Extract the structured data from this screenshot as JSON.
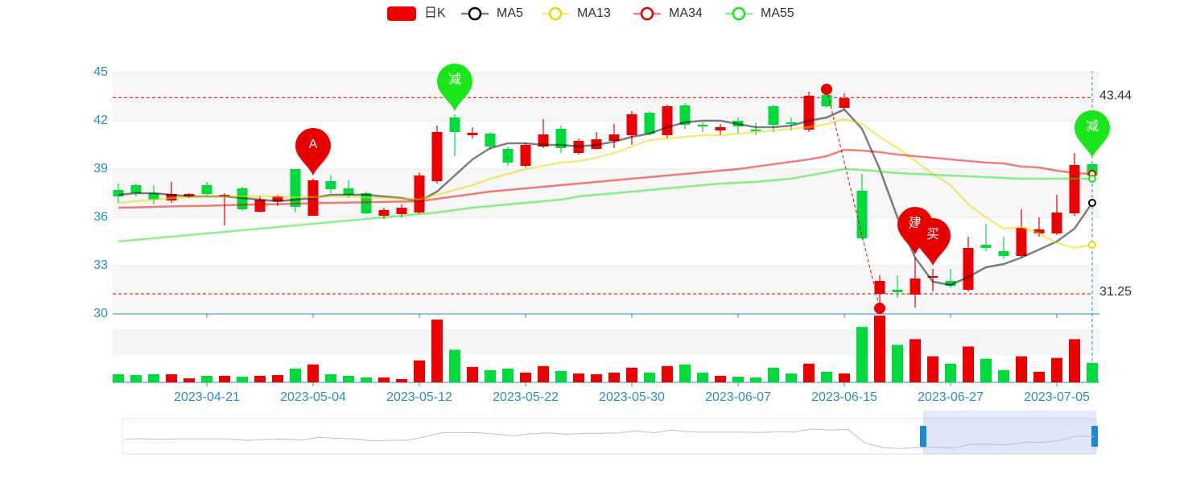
{
  "chart_data": {
    "type": "candlestick",
    "ylim": [
      30,
      45
    ],
    "yticks": [
      30,
      33,
      36,
      39,
      42,
      45
    ],
    "grid": true,
    "categories": [
      null,
      null,
      null,
      null,
      null,
      "2023-04-21",
      null,
      null,
      null,
      null,
      null,
      "2023-05-04",
      null,
      null,
      null,
      null,
      null,
      "2023-05-12",
      null,
      null,
      null,
      null,
      null,
      "2023-05-22",
      null,
      null,
      null,
      null,
      null,
      "2023-05-30",
      null,
      null,
      null,
      null,
      null,
      "2023-06-07",
      null,
      null,
      null,
      null,
      null,
      "2023-06-15",
      null,
      null,
      null,
      null,
      null,
      "2023-06-27",
      null,
      null,
      null,
      null,
      null,
      "2023-07-05",
      null,
      null
    ],
    "series": [
      {
        "name": "日K",
        "type": "candlestick",
        "color": "#ec0000",
        "down_color": "#00da3c",
        "values": [
          [
            37.7,
            37.3,
            36.9,
            38.1
          ],
          [
            38.0,
            37.5,
            37.3,
            38.1
          ],
          [
            37.5,
            37.1,
            36.8,
            38.0
          ],
          [
            37.05,
            37.45,
            36.9,
            38.2
          ],
          [
            37.3,
            37.45,
            37.2,
            37.5
          ],
          [
            38.0,
            37.45,
            37.3,
            38.2
          ],
          [
            37.3,
            37.4,
            35.5,
            37.5
          ],
          [
            37.8,
            36.5,
            36.4,
            37.9
          ],
          [
            36.35,
            37.1,
            36.3,
            37.3
          ],
          [
            37.0,
            37.3,
            36.7,
            37.4
          ],
          [
            39.0,
            36.65,
            36.3,
            39.0
          ],
          [
            36.1,
            38.3,
            36.1,
            38.4
          ],
          [
            38.25,
            37.75,
            37.5,
            38.6
          ],
          [
            37.8,
            37.4,
            37.2,
            38.3
          ],
          [
            37.5,
            36.25,
            36.2,
            37.6
          ],
          [
            36.1,
            36.45,
            35.9,
            36.6
          ],
          [
            36.2,
            36.6,
            36.0,
            36.8
          ],
          [
            36.3,
            38.6,
            36.2,
            38.8
          ],
          [
            38.25,
            41.3,
            38.1,
            41.7
          ],
          [
            42.2,
            41.3,
            39.8,
            42.4
          ],
          [
            41.1,
            41.25,
            40.9,
            41.6
          ],
          [
            41.2,
            40.4,
            40.2,
            41.3
          ],
          [
            40.25,
            39.4,
            39.2,
            40.4
          ],
          [
            39.2,
            40.5,
            39.1,
            40.6
          ],
          [
            40.4,
            41.15,
            40.3,
            42.1
          ],
          [
            41.5,
            40.3,
            40.0,
            41.7
          ],
          [
            40.0,
            40.75,
            39.9,
            40.9
          ],
          [
            40.25,
            40.85,
            40.2,
            41.3
          ],
          [
            40.75,
            41.15,
            40.3,
            41.8
          ],
          [
            41.1,
            42.4,
            40.5,
            42.6
          ],
          [
            42.5,
            41.2,
            41.1,
            42.6
          ],
          [
            41.1,
            42.9,
            40.9,
            43.0
          ],
          [
            42.95,
            41.75,
            41.5,
            43.1
          ],
          [
            41.75,
            41.65,
            41.3,
            41.9
          ],
          [
            41.4,
            41.6,
            41.1,
            41.8
          ],
          [
            42.0,
            41.65,
            41.2,
            42.2
          ],
          [
            41.45,
            41.35,
            41.1,
            41.9
          ],
          [
            42.9,
            41.75,
            41.3,
            43.0
          ],
          [
            41.9,
            41.8,
            41.4,
            42.2
          ],
          [
            41.45,
            43.55,
            41.3,
            43.8
          ],
          [
            43.6,
            42.9,
            42.8,
            43.95
          ],
          [
            42.8,
            43.4,
            42.7,
            43.7
          ],
          [
            37.65,
            34.7,
            34.6,
            38.7
          ],
          [
            31.25,
            32.05,
            30.35,
            32.4
          ],
          [
            31.5,
            31.35,
            31.0,
            32.4
          ],
          [
            31.2,
            32.2,
            30.4,
            33.5
          ],
          [
            32.25,
            32.35,
            31.4,
            32.8
          ],
          [
            32.05,
            31.75,
            31.6,
            32.8
          ],
          [
            31.5,
            34.1,
            31.4,
            34.8
          ],
          [
            34.3,
            34.1,
            33.9,
            35.6
          ],
          [
            33.9,
            33.6,
            33.4,
            34.8
          ],
          [
            33.6,
            35.35,
            33.5,
            36.5
          ],
          [
            35.0,
            35.25,
            34.8,
            36.0
          ],
          [
            35.0,
            36.3,
            34.9,
            37.4
          ],
          [
            36.25,
            39.25,
            36.1,
            40.0
          ],
          [
            39.3,
            38.6,
            38.5,
            39.5
          ]
        ]
      },
      {
        "name": "MA5",
        "type": "line",
        "color": "#000000",
        "values": [
          37.4,
          37.5,
          37.5,
          37.4,
          37.3,
          37.3,
          37.3,
          37.2,
          37.1,
          37.0,
          37.1,
          37.2,
          37.4,
          37.4,
          37.4,
          37.3,
          37.2,
          37.0,
          37.6,
          38.6,
          39.6,
          40.3,
          40.6,
          40.6,
          40.5,
          40.5,
          40.4,
          40.5,
          40.7,
          41.0,
          41.2,
          41.6,
          41.9,
          42.0,
          42.0,
          41.8,
          41.6,
          41.6,
          41.7,
          42.0,
          42.2,
          42.7,
          41.5,
          39.0,
          36.0,
          33.5,
          32.0,
          31.8,
          32.3,
          32.9,
          33.1,
          33.5,
          34.0,
          34.5,
          35.3,
          36.9
        ]
      },
      {
        "name": "MA13",
        "type": "line",
        "color": "#e6d900",
        "values": [
          36.9,
          37.0,
          37.1,
          37.2,
          37.25,
          37.3,
          37.3,
          37.3,
          37.3,
          37.3,
          37.25,
          37.25,
          37.3,
          37.3,
          37.25,
          37.2,
          37.15,
          37.1,
          37.4,
          37.7,
          38.0,
          38.4,
          38.7,
          39.0,
          39.2,
          39.4,
          39.5,
          39.7,
          40.0,
          40.4,
          40.8,
          40.9,
          41.0,
          41.1,
          41.1,
          41.2,
          41.3,
          41.4,
          41.5,
          41.6,
          41.8,
          42.1,
          41.8,
          41.0,
          40.3,
          39.5,
          38.7,
          38.0,
          36.8,
          36.0,
          35.3,
          35.4,
          35.0,
          34.4,
          34.1,
          34.3
        ]
      },
      {
        "name": "MA34",
        "type": "line",
        "color": "#e60000",
        "values": [
          36.6,
          36.62,
          36.65,
          36.68,
          36.7,
          36.72,
          36.75,
          36.78,
          36.8,
          36.82,
          36.85,
          36.88,
          36.9,
          36.92,
          36.94,
          36.96,
          36.98,
          37.0,
          37.15,
          37.3,
          37.45,
          37.6,
          37.7,
          37.8,
          37.9,
          38.0,
          38.1,
          38.2,
          38.3,
          38.4,
          38.5,
          38.6,
          38.7,
          38.8,
          38.9,
          39.0,
          39.15,
          39.3,
          39.45,
          39.6,
          39.8,
          40.2,
          40.15,
          40.05,
          39.9,
          39.8,
          39.7,
          39.6,
          39.5,
          39.4,
          39.35,
          39.15,
          39.1,
          38.9,
          38.75,
          38.7
        ]
      },
      {
        "name": "MA55",
        "type": "line",
        "color": "#19e619",
        "values": [
          34.5,
          34.6,
          34.7,
          34.8,
          34.9,
          35.0,
          35.1,
          35.2,
          35.3,
          35.4,
          35.5,
          35.6,
          35.7,
          35.8,
          35.9,
          36.0,
          36.1,
          36.2,
          36.3,
          36.45,
          36.6,
          36.7,
          36.8,
          36.9,
          37.0,
          37.1,
          37.3,
          37.4,
          37.5,
          37.6,
          37.7,
          37.8,
          37.9,
          38.0,
          38.1,
          38.15,
          38.2,
          38.3,
          38.4,
          38.6,
          38.8,
          39.0,
          38.95,
          38.85,
          38.75,
          38.7,
          38.65,
          38.6,
          38.55,
          38.5,
          38.45,
          38.4,
          38.4,
          38.4,
          38.4,
          38.4
        ]
      }
    ],
    "volume": {
      "ylim": [
        0,
        82
      ],
      "values": [
        10,
        9,
        10,
        10,
        5,
        8,
        8,
        7,
        8,
        9,
        17,
        22,
        10,
        8,
        6,
        6,
        4,
        27,
        77,
        40,
        19,
        15,
        17,
        12,
        20,
        14,
        11,
        10,
        12,
        18,
        12,
        20,
        22,
        12,
        8,
        7,
        6,
        18,
        11,
        23,
        13,
        11,
        68,
        82,
        46,
        53,
        32,
        23,
        44,
        29,
        15,
        32,
        13,
        30,
        53,
        24
      ]
    },
    "mark_lines": [
      43.44,
      31.25
    ],
    "max_point": 43.95,
    "min_point": 30.35,
    "annotations": [
      {
        "x": 11,
        "label": "A",
        "color": "#e60000"
      },
      {
        "x": 19,
        "label": "减",
        "color": "#19e619"
      },
      {
        "x": 45,
        "label": "建",
        "color": "#e60000"
      },
      {
        "x": 46,
        "label": "买",
        "color": "#e60000"
      },
      {
        "x": 55,
        "label": "减",
        "color": "#19e619"
      }
    ]
  }
}
